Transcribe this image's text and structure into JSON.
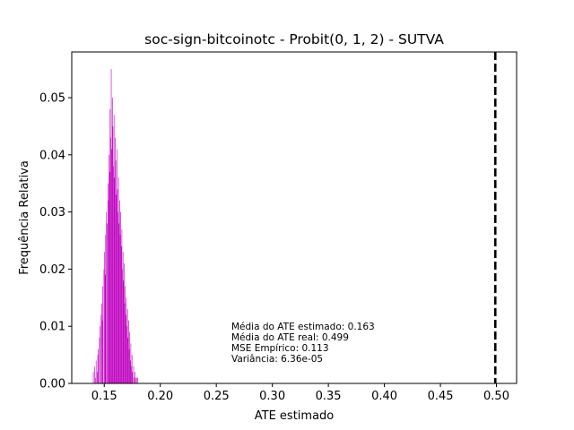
{
  "chart_data": {
    "type": "bar",
    "title": "soc-sign-bitcoinotc - Probit(0, 1, 2) - SUTVA",
    "xlabel": "ATE estimado",
    "ylabel": "Frequência Relativa",
    "xlim": [
      0.121,
      0.518
    ],
    "ylim": [
      0.0,
      0.058
    ],
    "xticks": [
      0.15,
      0.2,
      0.25,
      0.3,
      0.35,
      0.4,
      0.45,
      0.5
    ],
    "xtick_labels": [
      "0.15",
      "0.20",
      "0.25",
      "0.30",
      "0.35",
      "0.40",
      "0.45",
      "0.50"
    ],
    "yticks": [
      0.0,
      0.01,
      0.02,
      0.03,
      0.04,
      0.05
    ],
    "ytick_labels": [
      "0.00",
      "0.01",
      "0.02",
      "0.03",
      "0.04",
      "0.05"
    ],
    "grid": false,
    "bar_color": "#bf00bf",
    "reference_line": {
      "x": 0.499,
      "color": "#000000",
      "style": "dashed"
    },
    "bins": {
      "start": 0.14,
      "width": 0.0005,
      "values": [
        0.002,
        0.0,
        0.003,
        0.0,
        0.001,
        0.004,
        0.0,
        0.002,
        0.005,
        0.006,
        0.0,
        0.008,
        0.01,
        0.0,
        0.012,
        0.014,
        0.011,
        0.017,
        0.0,
        0.02,
        0.023,
        0.019,
        0.026,
        0.03,
        0.0,
        0.028,
        0.035,
        0.032,
        0.04,
        0.037,
        0.048,
        0.043,
        0.055,
        0.041,
        0.05,
        0.045,
        0.038,
        0.047,
        0.036,
        0.043,
        0.039,
        0.033,
        0.041,
        0.034,
        0.03,
        0.036,
        0.028,
        0.032,
        0.026,
        0.03,
        0.024,
        0.027,
        0.02,
        0.023,
        0.018,
        0.021,
        0.014,
        0.017,
        0.012,
        0.015,
        0.01,
        0.013,
        0.008,
        0.011,
        0.006,
        0.009,
        0.004,
        0.007,
        0.003,
        0.005,
        0.002,
        0.0,
        0.003,
        0.001,
        0.002,
        0.0,
        0.001,
        0.0,
        0.001,
        0.001
      ]
    },
    "annotation_lines": [
      "Média do ATE estimado: 0.163",
      "Média do ATE real: 0.499",
      "MSE Empírico: 0.113",
      "Variância: 6.36e-05"
    ]
  }
}
